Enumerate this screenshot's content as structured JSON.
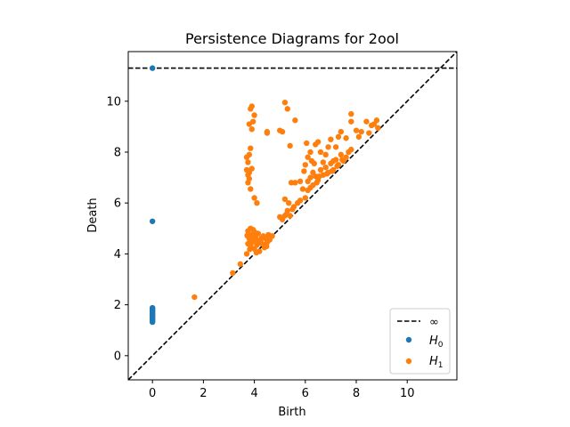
{
  "chart_data": {
    "type": "scatter",
    "title": "Persistence Diagrams for 2ool",
    "xlabel": "Birth",
    "ylabel": "Death",
    "xlim": [
      -0.95,
      11.95
    ],
    "ylim": [
      -0.95,
      11.95
    ],
    "x_ticks": [
      0,
      2,
      4,
      6,
      8,
      10
    ],
    "y_ticks": [
      0,
      2,
      4,
      6,
      8,
      10
    ],
    "x_tick_labels": [
      "0",
      "2",
      "4",
      "6",
      "8",
      "10"
    ],
    "y_tick_labels": [
      "0",
      "2",
      "4",
      "6",
      "8",
      "10"
    ],
    "infinity_line": 11.3,
    "diagonal": true,
    "grid": false,
    "legend_position": "lower-right",
    "legend": [
      {
        "label": "∞",
        "kind": "line",
        "color": "#000000"
      },
      {
        "label": "H",
        "sub": "0",
        "kind": "marker",
        "color": "#1f77b4"
      },
      {
        "label": "H",
        "sub": "1",
        "kind": "marker",
        "color": "#ff7f0e"
      }
    ],
    "series": [
      {
        "name": "H0",
        "color": "#1f77b4",
        "points": [
          [
            0,
            11.3
          ],
          [
            0,
            5.28
          ],
          [
            0,
            1.88
          ],
          [
            0,
            1.84
          ],
          [
            0,
            1.8
          ],
          [
            0,
            1.76
          ],
          [
            0,
            1.72
          ],
          [
            0,
            1.68
          ],
          [
            0,
            1.64
          ],
          [
            0,
            1.6
          ],
          [
            0,
            1.56
          ],
          [
            0,
            1.52
          ],
          [
            0,
            1.48
          ],
          [
            0,
            1.44
          ],
          [
            0,
            1.4
          ],
          [
            0,
            1.36
          ],
          [
            0,
            1.32
          ]
        ]
      },
      {
        "name": "H1",
        "color": "#ff7f0e",
        "points": [
          [
            1.65,
            2.3
          ],
          [
            3.15,
            3.25
          ],
          [
            3.45,
            3.6
          ],
          [
            3.7,
            4.0
          ],
          [
            3.75,
            4.4
          ],
          [
            3.8,
            4.6
          ],
          [
            3.85,
            4.3
          ],
          [
            3.9,
            4.75
          ],
          [
            3.95,
            4.5
          ],
          [
            4.0,
            4.2
          ],
          [
            4.05,
            4.65
          ],
          [
            4.1,
            4.35
          ],
          [
            4.15,
            4.8
          ],
          [
            4.2,
            4.1
          ],
          [
            4.25,
            4.55
          ],
          [
            4.3,
            4.4
          ],
          [
            4.35,
            4.7
          ],
          [
            4.4,
            4.25
          ],
          [
            4.45,
            4.6
          ],
          [
            4.5,
            4.45
          ],
          [
            4.55,
            4.75
          ],
          [
            4.6,
            4.55
          ],
          [
            4.7,
            4.7
          ],
          [
            3.72,
            4.72
          ],
          [
            3.82,
            4.18
          ],
          [
            3.92,
            4.58
          ],
          [
            4.02,
            4.85
          ],
          [
            4.12,
            4.5
          ],
          [
            3.88,
            4.42
          ],
          [
            4.08,
            4.05
          ],
          [
            4.28,
            4.62
          ],
          [
            4.48,
            4.3
          ],
          [
            3.75,
            4.9
          ],
          [
            3.85,
            5.0
          ],
          [
            3.95,
            4.95
          ],
          [
            3.7,
            7.3
          ],
          [
            3.75,
            7.6
          ],
          [
            3.8,
            7.9
          ],
          [
            3.85,
            8.15
          ],
          [
            3.7,
            7.8
          ],
          [
            3.8,
            7.2
          ],
          [
            3.9,
            7.35
          ],
          [
            3.75,
            6.8
          ],
          [
            3.85,
            6.55
          ],
          [
            3.8,
            6.95
          ],
          [
            3.9,
            8.9
          ],
          [
            3.8,
            9.1
          ],
          [
            3.85,
            9.7
          ],
          [
            3.9,
            9.8
          ],
          [
            3.95,
            9.2
          ],
          [
            4.0,
            9.45
          ],
          [
            4.0,
            6.2
          ],
          [
            4.1,
            6.0
          ],
          [
            3.75,
            7.1
          ],
          [
            4.5,
            8.8
          ],
          [
            4.5,
            8.75
          ],
          [
            5.0,
            8.85
          ],
          [
            5.1,
            8.8
          ],
          [
            5.2,
            9.95
          ],
          [
            5.3,
            9.7
          ],
          [
            5.6,
            9.25
          ],
          [
            5.4,
            8.25
          ],
          [
            5.0,
            5.45
          ],
          [
            5.2,
            5.5
          ],
          [
            5.3,
            5.7
          ],
          [
            5.35,
            6.0
          ],
          [
            5.2,
            6.15
          ],
          [
            5.1,
            5.35
          ],
          [
            5.4,
            5.5
          ],
          [
            5.5,
            5.75
          ],
          [
            5.45,
            6.8
          ],
          [
            5.6,
            6.8
          ],
          [
            5.8,
            6.85
          ],
          [
            5.8,
            6.1
          ],
          [
            6.0,
            6.2
          ],
          [
            5.9,
            6.55
          ],
          [
            6.1,
            6.5
          ],
          [
            6.2,
            6.6
          ],
          [
            6.3,
            6.7
          ],
          [
            6.1,
            6.85
          ],
          [
            6.2,
            7.0
          ],
          [
            6.3,
            7.2
          ],
          [
            6.4,
            7.05
          ],
          [
            6.5,
            6.9
          ],
          [
            6.6,
            7.3
          ],
          [
            6.7,
            7.1
          ],
          [
            6.8,
            7.4
          ],
          [
            6.9,
            7.2
          ],
          [
            7.0,
            7.55
          ],
          [
            7.1,
            7.3
          ],
          [
            7.2,
            7.7
          ],
          [
            7.3,
            7.5
          ],
          [
            7.4,
            7.9
          ],
          [
            7.5,
            7.65
          ],
          [
            7.6,
            7.8
          ],
          [
            7.7,
            8.0
          ],
          [
            7.8,
            8.1
          ],
          [
            6.0,
            7.5
          ],
          [
            6.1,
            7.8
          ],
          [
            6.2,
            8.0
          ],
          [
            6.4,
            8.3
          ],
          [
            6.5,
            8.4
          ],
          [
            6.6,
            8.0
          ],
          [
            6.7,
            7.6
          ],
          [
            6.8,
            7.9
          ],
          [
            6.9,
            8.2
          ],
          [
            7.0,
            8.5
          ],
          [
            7.1,
            7.65
          ],
          [
            6.05,
            8.35
          ],
          [
            6.35,
            7.55
          ],
          [
            5.95,
            7.25
          ],
          [
            6.25,
            7.65
          ],
          [
            7.4,
            8.8
          ],
          [
            7.6,
            8.55
          ],
          [
            7.8,
            9.2
          ],
          [
            7.8,
            9.5
          ],
          [
            8.0,
            8.85
          ],
          [
            8.1,
            8.6
          ],
          [
            8.2,
            8.8
          ],
          [
            8.4,
            9.2
          ],
          [
            8.5,
            8.75
          ],
          [
            8.6,
            9.05
          ],
          [
            8.7,
            9.1
          ],
          [
            8.8,
            9.25
          ],
          [
            8.85,
            8.95
          ],
          [
            7.2,
            8.2
          ],
          [
            7.3,
            8.6
          ],
          [
            5.25,
            5.55
          ],
          [
            5.55,
            5.85
          ],
          [
            5.7,
            6.0
          ],
          [
            6.45,
            6.8
          ],
          [
            6.55,
            7.05
          ],
          [
            6.85,
            7.15
          ],
          [
            7.05,
            7.25
          ],
          [
            7.25,
            7.45
          ],
          [
            7.45,
            7.7
          ]
        ]
      }
    ]
  }
}
